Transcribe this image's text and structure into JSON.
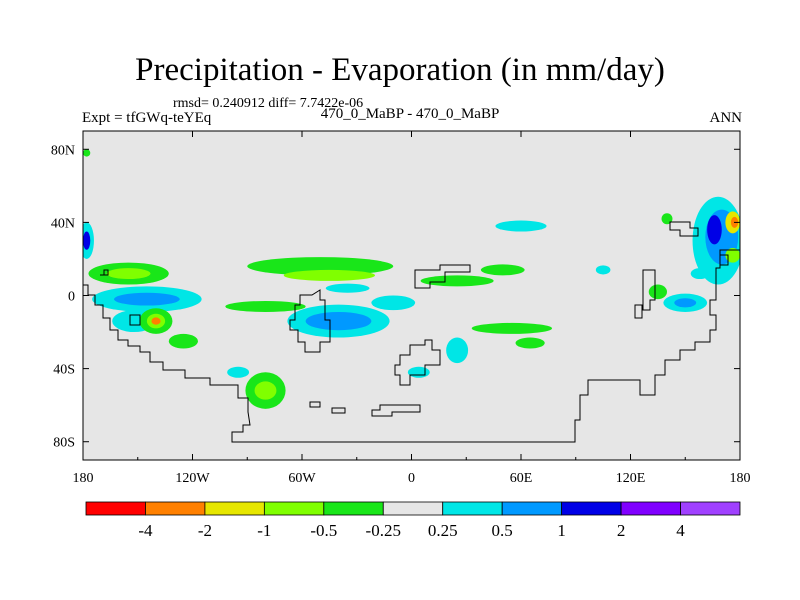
{
  "chart_data": {
    "type": "contour-map",
    "title": "Precipitation - Evaporation (in mm/day)",
    "stats": "rmsd= 0.240912 diff= 7.7422e-06",
    "subtitle": "470_0_MaBP - 470_0_MaBP",
    "left_label": "Expt = tfGWq-teYEq",
    "right_label": "ANN",
    "x_ticks": [
      "180",
      "120W",
      "60W",
      "0",
      "60E",
      "120E",
      "180"
    ],
    "x_tick_values": [
      -180,
      -120,
      -60,
      0,
      60,
      120,
      180
    ],
    "y_ticks": [
      "80N",
      "40N",
      "0",
      "40S",
      "80S"
    ],
    "y_tick_values": [
      80,
      40,
      0,
      -40,
      -80
    ],
    "xlim": [
      -180,
      180
    ],
    "ylim": [
      -90,
      90
    ],
    "colorbar": {
      "labels": [
        "-4",
        "-2",
        "-1",
        "-0.5",
        "-0.25",
        "0.25",
        "0.5",
        "1",
        "2",
        "4"
      ],
      "colors": [
        "#ff0000",
        "#ff8000",
        "#e6e600",
        "#80ff00",
        "#19e619",
        "#e6e6e6",
        "#00e6e6",
        "#0099ff",
        "#0000e6",
        "#8000ff",
        "#a040ff"
      ]
    },
    "colors": {
      "background": "#e6e6e6",
      "cyan": "#00e6e6",
      "lightblue": "#0099ff",
      "blue": "#0000e6",
      "green": "#19e619",
      "yellowgreen": "#80ff00",
      "yellow": "#e6e600",
      "orange": "#ff8000",
      "red": "#ff0000"
    },
    "regions": [
      {
        "lon": -178,
        "lat": 30,
        "rx": 4,
        "ry": 10,
        "level": "cyan"
      },
      {
        "lon": -178,
        "lat": 30,
        "rx": 2,
        "ry": 5,
        "level": "blue"
      },
      {
        "lon": -155,
        "lat": 12,
        "rx": 22,
        "ry": 6,
        "level": "green"
      },
      {
        "lon": -155,
        "lat": 12,
        "rx": 12,
        "ry": 3,
        "level": "yellowgreen"
      },
      {
        "lon": -145,
        "lat": -2,
        "rx": 30,
        "ry": 7,
        "level": "cyan"
      },
      {
        "lon": -145,
        "lat": -2,
        "rx": 18,
        "ry": 3.5,
        "level": "lightblue"
      },
      {
        "lon": -152,
        "lat": -14,
        "rx": 12,
        "ry": 6,
        "level": "cyan"
      },
      {
        "lon": -140,
        "lat": -14,
        "rx": 9,
        "ry": 7,
        "level": "green"
      },
      {
        "lon": -140,
        "lat": -14,
        "rx": 5,
        "ry": 4,
        "level": "yellowgreen"
      },
      {
        "lon": -140,
        "lat": -14,
        "rx": 2.5,
        "ry": 2,
        "level": "orange"
      },
      {
        "lon": -125,
        "lat": -25,
        "rx": 8,
        "ry": 4,
        "level": "green"
      },
      {
        "lon": -80,
        "lat": -52,
        "rx": 11,
        "ry": 10,
        "level": "green"
      },
      {
        "lon": -80,
        "lat": -52,
        "rx": 6,
        "ry": 5,
        "level": "yellowgreen"
      },
      {
        "lon": -95,
        "lat": -42,
        "rx": 6,
        "ry": 3,
        "level": "cyan"
      },
      {
        "lon": -50,
        "lat": 16,
        "rx": 40,
        "ry": 5,
        "level": "green"
      },
      {
        "lon": -45,
        "lat": 11,
        "rx": 25,
        "ry": 3,
        "level": "yellowgreen"
      },
      {
        "lon": -80,
        "lat": -6,
        "rx": 22,
        "ry": 3,
        "level": "green"
      },
      {
        "lon": -40,
        "lat": -14,
        "rx": 28,
        "ry": 9,
        "level": "cyan"
      },
      {
        "lon": -40,
        "lat": -14,
        "rx": 18,
        "ry": 5,
        "level": "lightblue"
      },
      {
        "lon": -10,
        "lat": -4,
        "rx": 12,
        "ry": 4,
        "level": "cyan"
      },
      {
        "lon": -35,
        "lat": 4,
        "rx": 12,
        "ry": 2.5,
        "level": "cyan"
      },
      {
        "lon": 25,
        "lat": 8,
        "rx": 20,
        "ry": 3,
        "level": "green"
      },
      {
        "lon": 50,
        "lat": 14,
        "rx": 12,
        "ry": 3,
        "level": "green"
      },
      {
        "lon": 60,
        "lat": 38,
        "rx": 14,
        "ry": 3,
        "level": "cyan"
      },
      {
        "lon": 25,
        "lat": -30,
        "rx": 6,
        "ry": 7,
        "level": "cyan"
      },
      {
        "lon": 55,
        "lat": -18,
        "rx": 22,
        "ry": 3,
        "level": "green"
      },
      {
        "lon": 65,
        "lat": -26,
        "rx": 8,
        "ry": 3,
        "level": "green"
      },
      {
        "lon": 4,
        "lat": -42,
        "rx": 6,
        "ry": 3,
        "level": "cyan"
      },
      {
        "lon": 105,
        "lat": 14,
        "rx": 4,
        "ry": 2.5,
        "level": "cyan"
      },
      {
        "lon": 140,
        "lat": 42,
        "rx": 3,
        "ry": 3,
        "level": "green"
      },
      {
        "lon": 150,
        "lat": -4,
        "rx": 12,
        "ry": 5,
        "level": "cyan"
      },
      {
        "lon": 150,
        "lat": -4,
        "rx": 6,
        "ry": 2.5,
        "level": "lightblue"
      },
      {
        "lon": 135,
        "lat": 2,
        "rx": 5,
        "ry": 4,
        "level": "green"
      },
      {
        "lon": 168,
        "lat": 30,
        "rx": 14,
        "ry": 24,
        "level": "cyan"
      },
      {
        "lon": 170,
        "lat": 32,
        "rx": 9,
        "ry": 15,
        "level": "lightblue"
      },
      {
        "lon": 166,
        "lat": 36,
        "rx": 4,
        "ry": 8,
        "level": "blue"
      },
      {
        "lon": 176,
        "lat": 40,
        "rx": 4,
        "ry": 6,
        "level": "yellow"
      },
      {
        "lon": 177,
        "lat": 40,
        "rx": 2,
        "ry": 3,
        "level": "orange"
      },
      {
        "lon": 176,
        "lat": 22,
        "rx": 4,
        "ry": 4,
        "level": "yellowgreen"
      },
      {
        "lon": 158,
        "lat": 12,
        "rx": 5,
        "ry": 3,
        "level": "cyan"
      },
      {
        "lon": -178,
        "lat": 78,
        "rx": 2,
        "ry": 2,
        "level": "green"
      }
    ]
  }
}
